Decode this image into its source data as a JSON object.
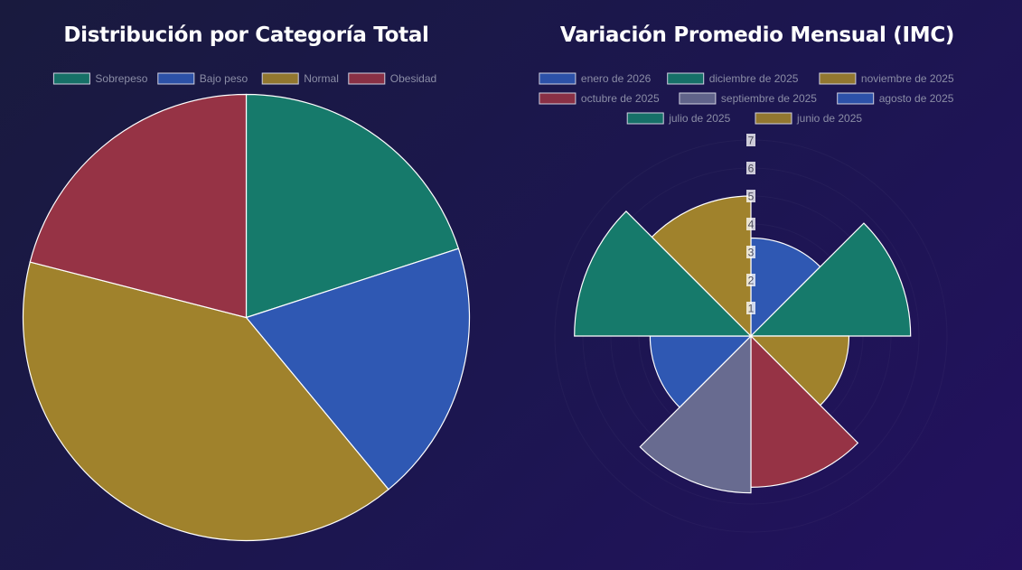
{
  "colors": {
    "background": "#1b1848",
    "title": "#ffffff",
    "legend_text": "#8b8da6",
    "slice_border": "#ffffff"
  },
  "chart_data": [
    {
      "type": "pie",
      "title": "Distribución por Categoría Total",
      "legend_position": "top",
      "categories": [
        "Sobrepeso",
        "Bajo peso",
        "Normal",
        "Obesidad"
      ],
      "values": [
        20,
        19,
        40,
        21
      ],
      "colors": [
        "#167a6b",
        "#2f58b3",
        "#a0822c",
        "#963345"
      ]
    },
    {
      "type": "polarArea",
      "title": "Variación Promedio Mensual (IMC)",
      "legend_position": "top",
      "categories": [
        "enero de 2026",
        "diciembre de 2025",
        "noviembre de 2025",
        "octubre de 2025",
        "septiembre de 2025",
        "agosto de 2025",
        "julio de 2025",
        "junio de 2025"
      ],
      "values": [
        3.5,
        5.7,
        3.5,
        5.4,
        5.6,
        3.6,
        6.3,
        5.0
      ],
      "colors": [
        "#2f58b3",
        "#167a6b",
        "#a0822c",
        "#963345",
        "#686b90",
        "#2f58b3",
        "#167a6b",
        "#a0822c"
      ],
      "r_ticks": [
        1,
        2,
        3,
        4,
        5,
        6,
        7
      ],
      "r_max": 7
    }
  ]
}
